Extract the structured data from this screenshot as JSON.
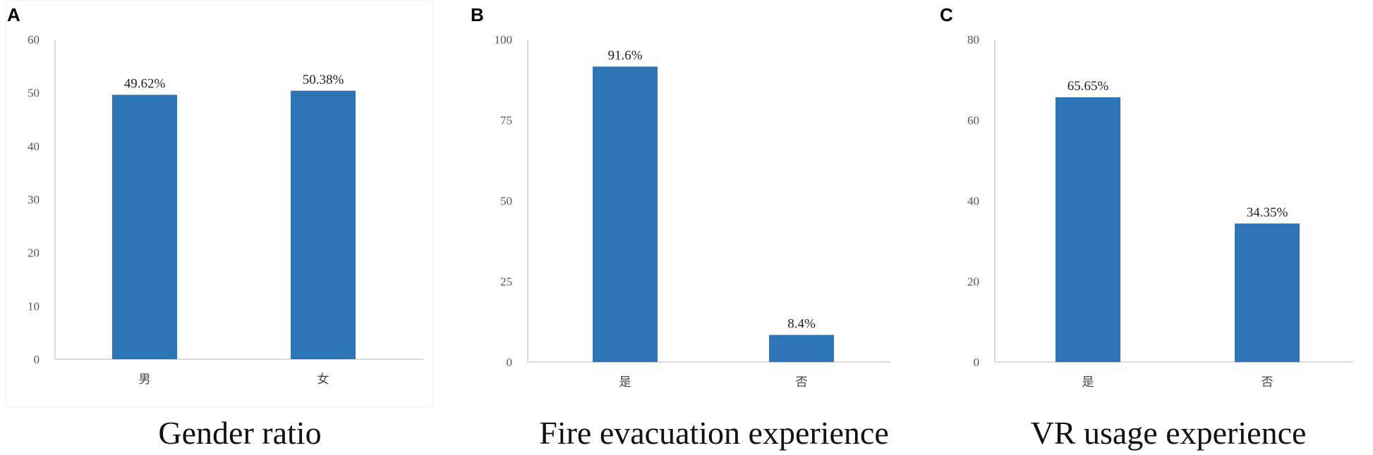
{
  "chart_data": [
    {
      "panel": "A",
      "type": "bar",
      "caption": "Gender ratio",
      "categories": [
        "男",
        "女"
      ],
      "values": [
        49.62,
        50.38
      ],
      "data_labels": [
        "49.62%",
        "50.38%"
      ],
      "ylim": [
        0,
        60
      ],
      "yticks": [
        0,
        10,
        20,
        30,
        40,
        50,
        60
      ],
      "grid": false,
      "bar_color": "#2E75B6"
    },
    {
      "panel": "B",
      "type": "bar",
      "caption": "Fire evacuation experience",
      "categories": [
        "是",
        "否"
      ],
      "values": [
        91.6,
        8.4
      ],
      "data_labels": [
        "91.6%",
        "8.4%"
      ],
      "ylim": [
        0,
        100
      ],
      "yticks": [
        0,
        25,
        50,
        75,
        100
      ],
      "grid": false,
      "bar_color": "#2E75B6"
    },
    {
      "panel": "C",
      "type": "bar",
      "caption": "VR usage experience",
      "categories": [
        "是",
        "否"
      ],
      "values": [
        65.65,
        34.35
      ],
      "data_labels": [
        "65.65%",
        "34.35%"
      ],
      "ylim": [
        0,
        80
      ],
      "yticks": [
        0,
        20,
        40,
        60,
        80
      ],
      "grid": false,
      "bar_color": "#2E75B6"
    }
  ]
}
